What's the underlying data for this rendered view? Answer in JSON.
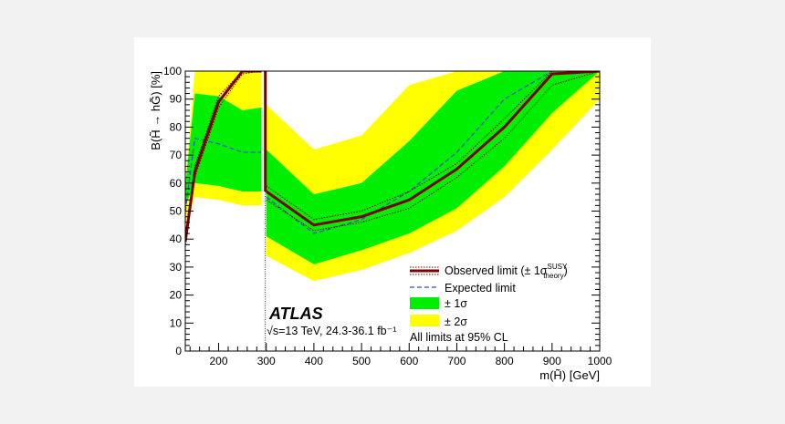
{
  "chart_data": {
    "type": "line",
    "title": "",
    "xlabel": "m(H̃)  [GeV]",
    "ylabel": "B(H̃ → hG̃) [%]",
    "xlim": [
      130,
      1000
    ],
    "ylim": [
      0,
      100
    ],
    "x_ticks": [
      200,
      300,
      400,
      500,
      600,
      700,
      800,
      900,
      1000
    ],
    "y_ticks": [
      0,
      10,
      20,
      30,
      40,
      50,
      60,
      70,
      80,
      90,
      100
    ],
    "atlas_label": "ATLAS",
    "energy_label": "√s=13 TeV, 24.3-36.1 fb⁻¹",
    "note": "All limits at 95% CL",
    "legend": {
      "observed": "Observed limit (± 1σ",
      "observed_sup": "SUSY",
      "observed_sub": "theory",
      "observed_close": ")",
      "expected": "Expected limit",
      "band1": "± 1σ",
      "band2": "± 2σ"
    },
    "colors": {
      "observed": "#7a0000",
      "expected": "#3355cc",
      "band1": "#00ee00",
      "band2": "#ffff00"
    },
    "discontinuity_x": 300,
    "segments": [
      {
        "x": [
          130,
          150,
          200,
          250,
          290
        ],
        "expected": [
          50,
          76,
          74,
          71,
          71
        ],
        "band1_low": [
          52,
          60,
          59,
          57,
          57
        ],
        "band1_high": [
          59,
          92,
          91,
          86,
          87
        ],
        "band2_low": [
          45,
          55,
          54,
          52,
          52
        ],
        "band2_high": [
          60,
          100,
          100,
          100,
          100
        ],
        "observed": [
          39,
          64,
          89,
          100,
          100
        ],
        "observed_up": [
          41,
          66,
          91,
          100,
          100
        ],
        "observed_down": [
          37,
          62,
          87,
          99,
          100
        ]
      },
      {
        "x": [
          300,
          400,
          500,
          600,
          700,
          800,
          900,
          1000
        ],
        "expected": [
          55,
          42,
          47,
          57,
          71,
          90,
          100,
          100
        ],
        "band1_low": [
          41,
          31,
          36,
          42,
          51,
          66,
          85,
          100
        ],
        "band1_high": [
          72,
          56,
          60,
          75,
          93,
          100,
          100,
          100
        ],
        "band2_low": [
          34,
          25,
          29,
          35,
          43,
          55,
          72,
          90
        ],
        "band2_high": [
          88,
          72,
          77,
          95,
          100,
          100,
          100,
          100
        ],
        "observed": [
          57,
          45,
          48,
          54,
          65,
          80,
          99,
          100
        ],
        "observed_up": [
          59,
          47,
          50,
          57,
          67,
          83,
          100,
          100
        ],
        "observed_down": [
          54,
          43,
          46,
          51,
          62,
          76,
          95,
          100
        ]
      }
    ],
    "observed_vertical": {
      "x": 300,
      "from": 57,
      "to": 100
    }
  }
}
